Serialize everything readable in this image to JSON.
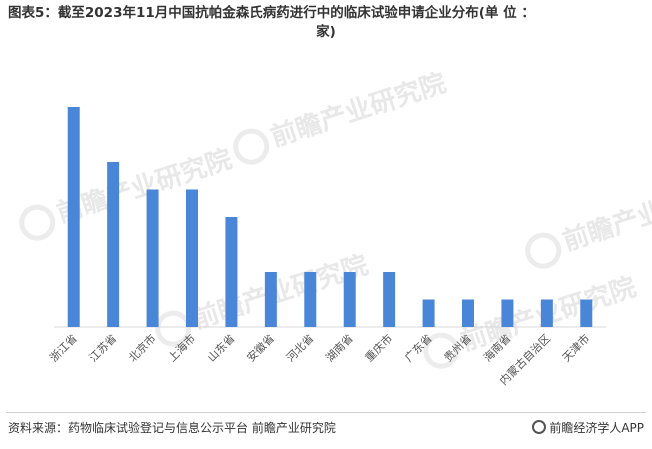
{
  "title_part1": "图表5：截至2023年11月中国抗帕金森氏病药进行中的临床试验申请企业分布(单 位 ：",
  "title_part2": "家)",
  "watermark": "前瞻产业研究院",
  "source": "资料来源：药物临床试验登记与信息公示平台 前瞻产业研究院",
  "brand": "前瞻经济学人APP",
  "chart_data": {
    "type": "bar",
    "categories": [
      "浙江省",
      "江苏省",
      "北京市",
      "上海市",
      "山东省",
      "安徽省",
      "河北省",
      "湖南省",
      "重庆市",
      "广东省",
      "贵州省",
      "海南省",
      "内蒙古自治区",
      "天津市"
    ],
    "values": [
      8,
      6,
      5,
      5,
      4,
      2,
      2,
      2,
      2,
      1,
      1,
      1,
      1,
      1
    ],
    "ylim": [
      0,
      8
    ],
    "bar_color": "#4a86d8",
    "grid": false,
    "legend": "none"
  }
}
